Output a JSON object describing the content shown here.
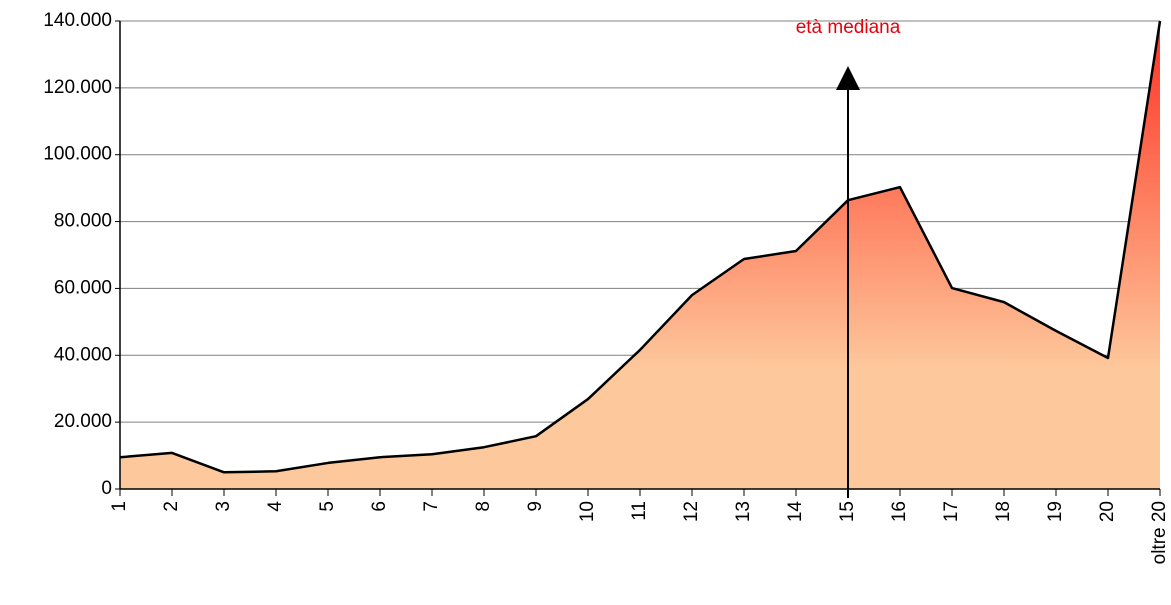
{
  "chart_data": {
    "type": "area",
    "categories": [
      "1",
      "2",
      "3",
      "4",
      "5",
      "6",
      "7",
      "8",
      "9",
      "10",
      "11",
      "12",
      "13",
      "14",
      "15",
      "16",
      "17",
      "18",
      "19",
      "20",
      "oltre 20"
    ],
    "values": [
      9500,
      10800,
      5000,
      5300,
      7800,
      9500,
      10400,
      12500,
      15800,
      26900,
      41600,
      58000,
      68800,
      71200,
      86400,
      90300,
      60100,
      55900,
      47300,
      39200,
      140000
    ],
    "line_color": "#000000",
    "color_top": "#ff3b2a",
    "color_bottom": "#fdc99c",
    "ylim": [
      0,
      140000
    ],
    "yticks": [
      0,
      {
        "value": 20000,
        "label": "20.000"
      },
      {
        "value": 40000,
        "label": "40.000"
      },
      {
        "value": 60000,
        "label": "60.000"
      },
      {
        "value": 80000,
        "label": "80.000"
      },
      {
        "value": 100000,
        "label": "100.000"
      },
      {
        "value": 120000,
        "label": "120.000"
      },
      {
        "value": 140000,
        "label": "140.000"
      }
    ],
    "grid": true,
    "annotation": "età mediana"
  }
}
